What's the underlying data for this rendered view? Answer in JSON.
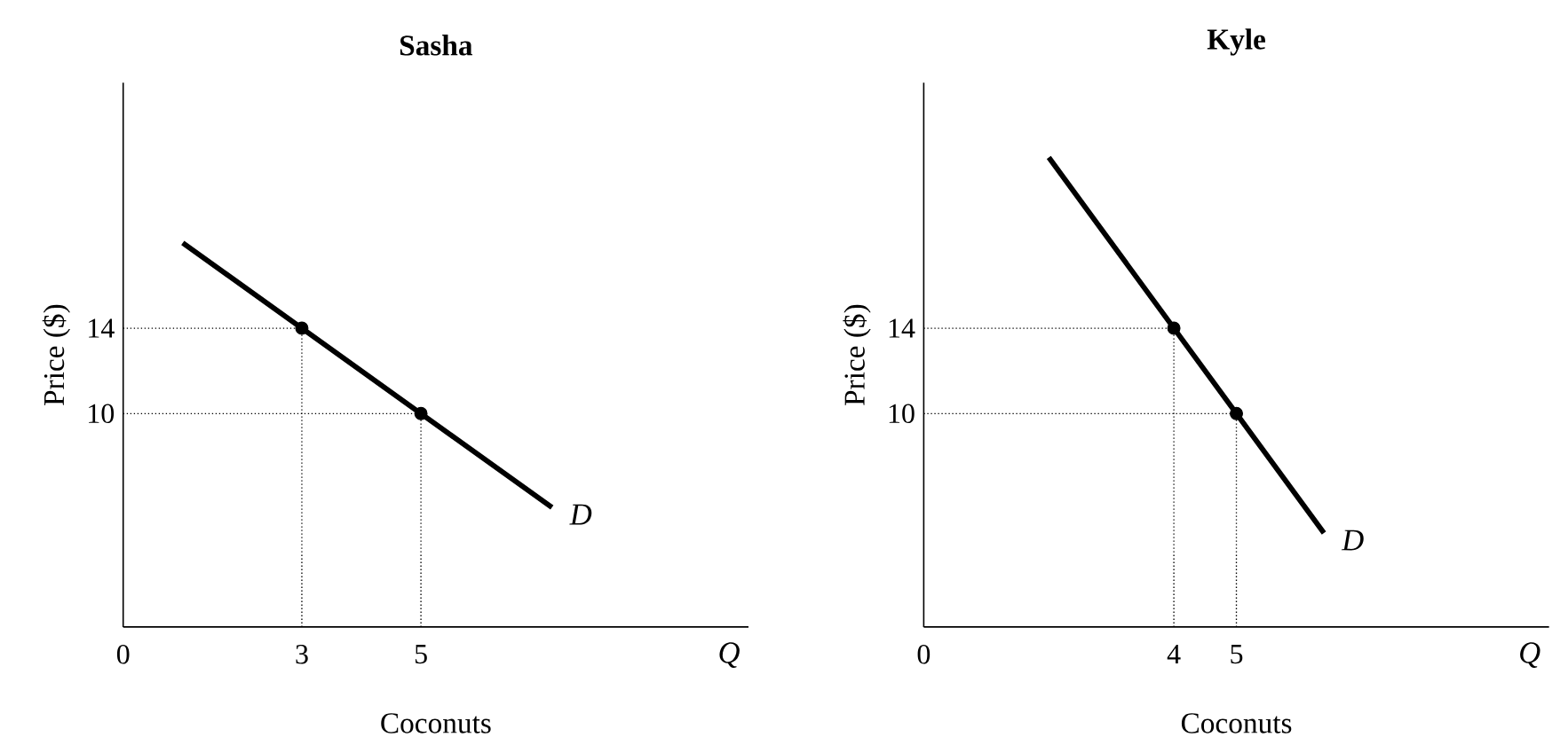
{
  "chart_data": [
    {
      "type": "line",
      "title": "Sasha",
      "xlabel": "Coconuts",
      "ylabel": "Price ($)",
      "xlim": [
        0,
        10.5
      ],
      "ylim": [
        0,
        25.5
      ],
      "xticks": [
        0,
        3,
        5
      ],
      "yticks": [
        10,
        14
      ],
      "grid": false,
      "series": [
        {
          "color": "#000000",
          "x": [
            1,
            3,
            5,
            7.2
          ],
          "values": [
            18,
            14,
            10,
            5.6
          ]
        },
        {
          "type": "scatter",
          "color": "#000000",
          "marker": "circle",
          "x": [
            3,
            5
          ],
          "values": [
            14,
            10
          ]
        }
      ],
      "ref_lines": [
        {
          "axis": "y",
          "value": 14,
          "line_style": "dotted"
        },
        {
          "axis": "y",
          "value": 10,
          "line_style": "dotted"
        },
        {
          "axis": "x",
          "value": 3,
          "line_style": "dotted"
        },
        {
          "axis": "x",
          "value": 5,
          "line_style": "dotted"
        }
      ],
      "annotations": [
        "*D*",
        "*Q*"
      ]
    },
    {
      "type": "line",
      "title": "Kyle",
      "xlabel": "Coconuts",
      "ylabel": "Price ($)",
      "xlim": [
        0,
        10
      ],
      "ylim": [
        0,
        25.5
      ],
      "xticks": [
        0,
        4,
        5
      ],
      "yticks": [
        10,
        14
      ],
      "grid": false,
      "series": [
        {
          "color": "#000000",
          "x": [
            2,
            4,
            5,
            6.4
          ],
          "values": [
            22,
            14,
            10,
            4.4
          ]
        },
        {
          "type": "scatter",
          "color": "#000000",
          "marker": "circle",
          "x": [
            4,
            5
          ],
          "values": [
            14,
            10
          ]
        }
      ],
      "ref_lines": [
        {
          "axis": "y",
          "value": 14,
          "line_style": "dotted"
        },
        {
          "axis": "y",
          "value": 10,
          "line_style": "dotted"
        },
        {
          "axis": "x",
          "value": 4,
          "line_style": "dotted"
        },
        {
          "axis": "x",
          "value": 5,
          "line_style": "dotted"
        }
      ],
      "annotations": [
        "*D*",
        "*Q*"
      ]
    }
  ]
}
